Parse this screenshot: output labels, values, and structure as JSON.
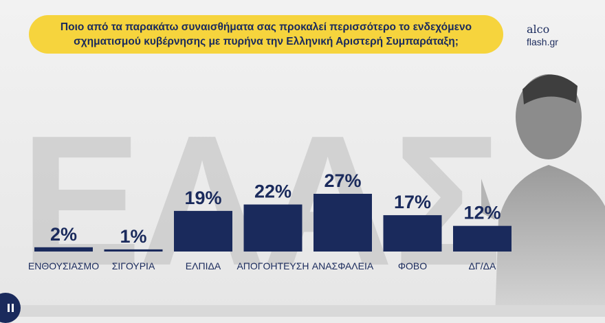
{
  "question": {
    "line1": "Ποιο από τα παρακάτω συναισθήματα σας προκαλεί περισσότερο το ενδεχόμενο",
    "line2": "σχηματισμού κυβέρνησης με πυρήνα την Ελληνική Αριστερή Συμπαράταξη;"
  },
  "logo": {
    "line1": "alco",
    "line2": "flash.gr"
  },
  "watermark_text": "ΕΛΑΣ",
  "colors": {
    "bar": "#1a2a5c",
    "label": "#1a2a5c",
    "banner": "#f6d43d",
    "watermark": "#bdbdbd"
  },
  "chart_data": {
    "type": "bar",
    "categories": [
      "ΕΝΘΟΥΣΙΑΣΜΟ",
      "ΣΙΓΟΥΡΙΑ",
      "ΕΛΠΙΔΑ",
      "ΑΠΟΓΟΗΤΕΥΣΗ",
      "ΑΝΑΣΦΑΛΕΙΑ",
      "ΦΟΒΟ",
      "ΔΓ/ΔΑ"
    ],
    "values": [
      2,
      1,
      19,
      22,
      27,
      17,
      12
    ],
    "value_labels": [
      "2%",
      "1%",
      "19%",
      "22%",
      "27%",
      "17%",
      "12%"
    ],
    "title": "",
    "xlabel": "",
    "ylabel": "",
    "ylim": [
      0,
      27
    ]
  }
}
